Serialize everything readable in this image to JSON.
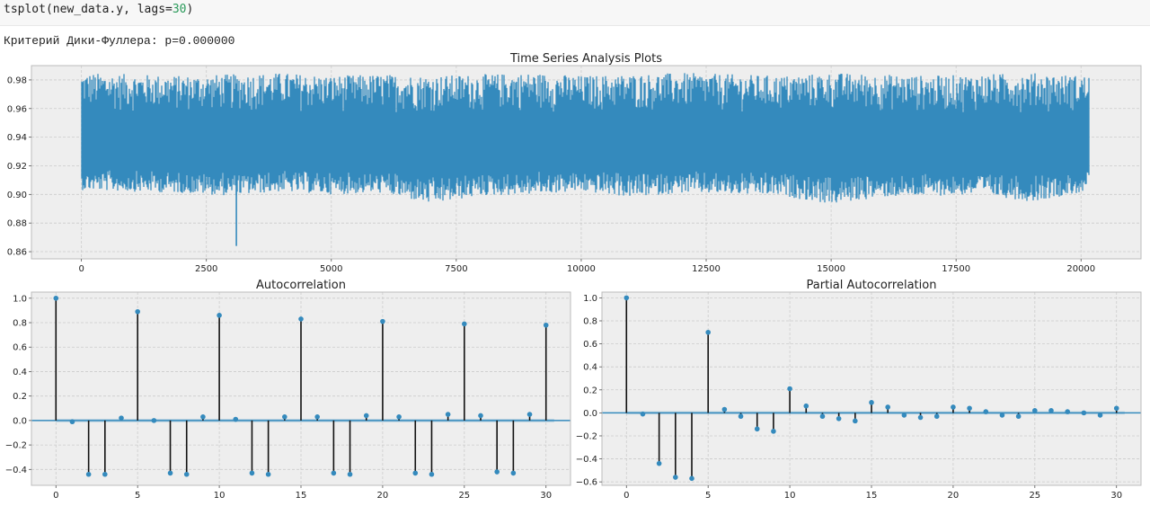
{
  "code": {
    "func": "tsplot",
    "arg": "new_data.y, lags=",
    "lags_value": "30",
    "close": ")"
  },
  "output_text": "Критерий Дики-Фуллера: p=0.000000",
  "colors": {
    "series": "#348abd",
    "stem": "#111111",
    "axes_bg": "#eeeeee",
    "grid": "#cccccc",
    "frame": "#bcbcbc",
    "text": "#222222"
  },
  "chart_data": [
    {
      "type": "line",
      "title": "Time Series Analysis Plots",
      "xlim": [
        -1000,
        21200
      ],
      "ylim": [
        0.855,
        0.99
      ],
      "xticks": [
        0,
        2500,
        5000,
        7500,
        10000,
        12500,
        15000,
        17500,
        20000
      ],
      "yticks": [
        0.86,
        0.88,
        0.9,
        0.92,
        0.94,
        0.96,
        0.98
      ],
      "ytick_labels": [
        "0.86",
        "0.88",
        "0.90",
        "0.92",
        "0.94",
        "0.96",
        "0.98"
      ],
      "grid": true,
      "series_length": 20150,
      "envelope": {
        "x": [
          0,
          1000,
          2000,
          3000,
          4000,
          5000,
          6000,
          7000,
          8000,
          9000,
          10000,
          11000,
          12000,
          13000,
          14000,
          15000,
          16000,
          17000,
          18000,
          19000,
          20150
        ],
        "upper": [
          0.985,
          0.984,
          0.983,
          0.984,
          0.985,
          0.983,
          0.984,
          0.983,
          0.984,
          0.985,
          0.983,
          0.984,
          0.985,
          0.984,
          0.983,
          0.985,
          0.984,
          0.983,
          0.984,
          0.985,
          0.983
        ],
        "lower": [
          0.903,
          0.902,
          0.901,
          0.899,
          0.902,
          0.9,
          0.901,
          0.893,
          0.899,
          0.9,
          0.902,
          0.898,
          0.901,
          0.9,
          0.899,
          0.893,
          0.898,
          0.899,
          0.9,
          0.895,
          0.902
        ]
      },
      "spike": {
        "x": 3100,
        "y": 0.864
      },
      "mean": 0.935
    },
    {
      "type": "stem",
      "title": "Autocorrelation",
      "xlim": [
        -1.5,
        31.5
      ],
      "ylim": [
        -0.53,
        1.05
      ],
      "xticks": [
        0,
        5,
        10,
        15,
        20,
        25,
        30
      ],
      "yticks": [
        -0.4,
        -0.2,
        0.0,
        0.2,
        0.4,
        0.6,
        0.8,
        1.0
      ],
      "ytick_labels": [
        "−0.4",
        "−0.2",
        "0.0",
        "0.2",
        "0.4",
        "0.6",
        "0.8",
        "1.0"
      ],
      "grid": true,
      "x": [
        0,
        1,
        2,
        3,
        4,
        5,
        6,
        7,
        8,
        9,
        10,
        11,
        12,
        13,
        14,
        15,
        16,
        17,
        18,
        19,
        20,
        21,
        22,
        23,
        24,
        25,
        26,
        27,
        28,
        29,
        30
      ],
      "values": [
        1.0,
        -0.01,
        -0.44,
        -0.44,
        0.02,
        0.89,
        0.0,
        -0.43,
        -0.44,
        0.03,
        0.86,
        0.01,
        -0.43,
        -0.44,
        0.03,
        0.83,
        0.03,
        -0.43,
        -0.44,
        0.04,
        0.81,
        0.03,
        -0.43,
        -0.44,
        0.05,
        0.79,
        0.04,
        -0.42,
        -0.43,
        0.05,
        0.78
      ],
      "confint": 0.014
    },
    {
      "type": "stem",
      "title": "Partial Autocorrelation",
      "xlim": [
        -1.5,
        31.5
      ],
      "ylim": [
        -0.63,
        1.05
      ],
      "xticks": [
        0,
        5,
        10,
        15,
        20,
        25,
        30
      ],
      "yticks": [
        -0.6,
        -0.4,
        -0.2,
        0.0,
        0.2,
        0.4,
        0.6,
        0.8,
        1.0
      ],
      "ytick_labels": [
        "−0.6",
        "−0.4",
        "−0.2",
        "0.0",
        "0.2",
        "0.4",
        "0.6",
        "0.8",
        "1.0"
      ],
      "grid": true,
      "x": [
        0,
        1,
        2,
        3,
        4,
        5,
        6,
        7,
        8,
        9,
        10,
        11,
        12,
        13,
        14,
        15,
        16,
        17,
        18,
        19,
        20,
        21,
        22,
        23,
        24,
        25,
        26,
        27,
        28,
        29,
        30
      ],
      "values": [
        1.0,
        -0.01,
        -0.44,
        -0.56,
        -0.57,
        0.7,
        0.03,
        -0.03,
        -0.14,
        -0.16,
        0.21,
        0.06,
        -0.03,
        -0.05,
        -0.07,
        0.09,
        0.05,
        -0.02,
        -0.04,
        -0.03,
        0.05,
        0.04,
        0.01,
        -0.02,
        -0.03,
        0.02,
        0.02,
        0.01,
        0.0,
        -0.02,
        0.04
      ],
      "confint": 0.014
    }
  ]
}
